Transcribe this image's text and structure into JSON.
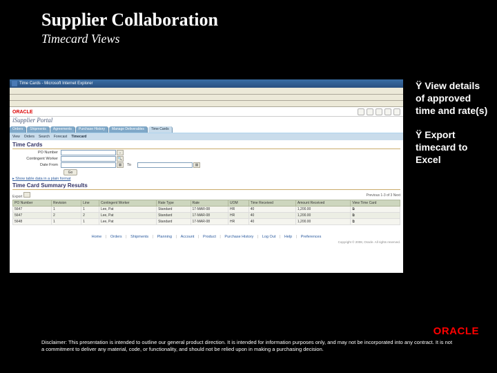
{
  "slide": {
    "title": "Supplier Collaboration",
    "subtitle": "Timecard Views",
    "bullets": [
      "View details of approved time and rate(s)",
      "Export timecard to Excel"
    ],
    "bullet_mark": "Ÿ",
    "disclaimer": "Disclaimer:  This presentation is intended to outline our general product direction.  It is intended for information purposes only, and may not be incorporated into any contract. It is not a commitment to deliver any material, code, or functionality, and should not be relied upon in making a purchasing decision.",
    "footer_brand": "ORACLE"
  },
  "screenshot": {
    "ie_title": "Time Cards - Microsoft Internet Explorer",
    "brand_logo": "ORACLE",
    "brand_product": "iSupplier Portal",
    "top_tabs": [
      "Orders",
      "Shipments",
      "Agreements",
      "Purchase History",
      "Manage Deliverables",
      "Time Cards"
    ],
    "active_top_tab": 5,
    "sub_tabs": [
      "View",
      "Orders",
      "Search",
      "Forecast",
      "Timecard"
    ],
    "active_sub_tab": 4,
    "section1_title": "Time Cards",
    "form": {
      "po_number_label": "PO Number",
      "worker_label": "Contingent Worker",
      "date_from_label": "Date From",
      "date_to_label": "To",
      "go_label": "Go"
    },
    "show_link": "Show table data in a plain format",
    "section2_title": "Time Card Summary Results",
    "export_label": "Export",
    "pager": "Previous 1-3 of 3 Next",
    "columns": [
      "PO Number",
      "Revision",
      "Line",
      "Contingent Worker",
      "Rate Type",
      "Rate",
      "UOM",
      "Time Received",
      "Amount Received",
      "View Time Card"
    ],
    "rows": [
      [
        "5647",
        "1",
        "1",
        "Lee, Pat",
        "Standard",
        "17-MAR-08",
        "HR",
        "40",
        "1,200.00",
        "⧉"
      ],
      [
        "5647",
        "2",
        "2",
        "Lee, Pat",
        "Standard",
        "17-MAR-08",
        "HR",
        "40",
        "1,200.00",
        "⧉"
      ],
      [
        "5648",
        "1",
        "1",
        "Lee, Pat",
        "Standard",
        "17-MAR-08",
        "HR",
        "40",
        "1,200.00",
        "⧉"
      ]
    ],
    "footer_links": [
      "Home",
      "Orders",
      "Shipments",
      "Planning",
      "Account",
      "Product",
      "Purchase History",
      "Log Out",
      "Help",
      "Preferences"
    ],
    "copyright": "Copyright © 2008, Oracle. All rights reserved."
  },
  "colors": {
    "slide_bg": "#000000",
    "accent_red": "#ff0000",
    "tab_blue": "#7fa8c8",
    "tab_active": "#c9dceb",
    "th_bg": "#cdd6be"
  }
}
